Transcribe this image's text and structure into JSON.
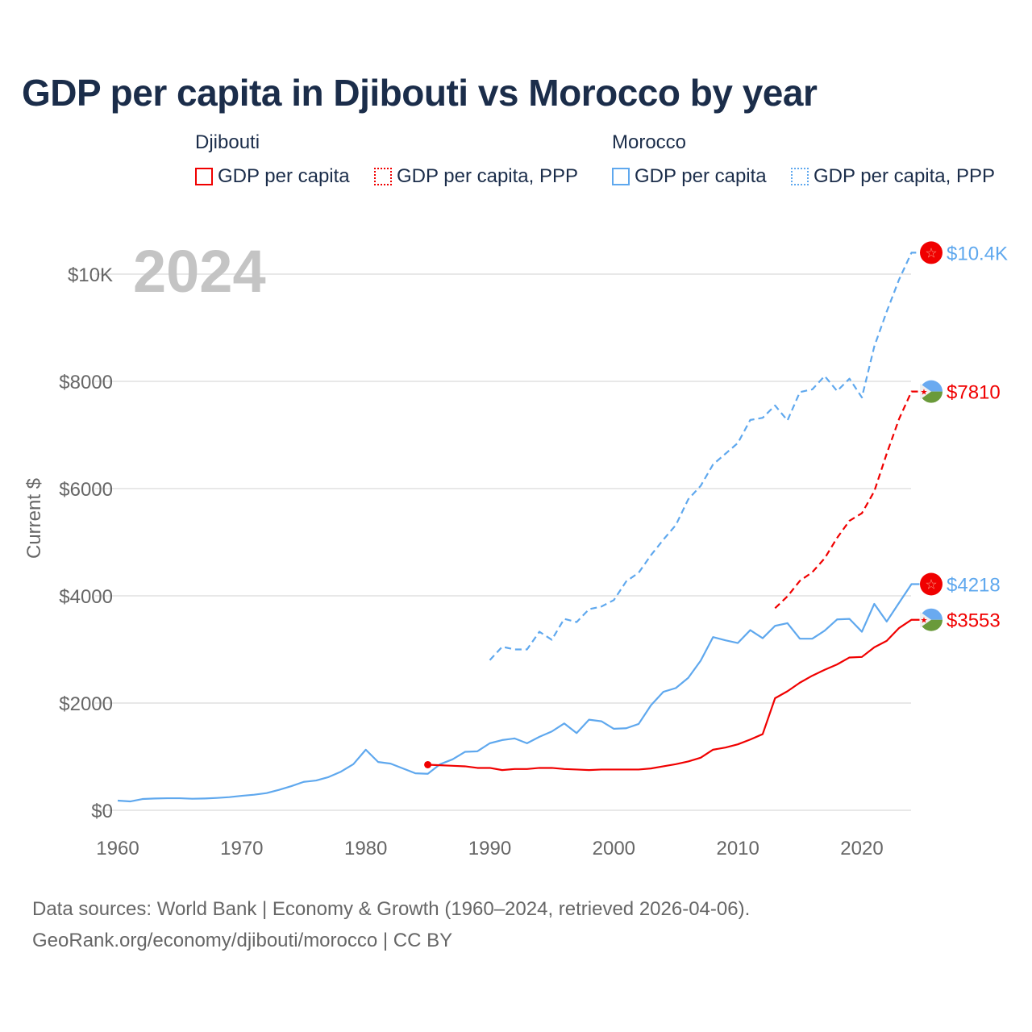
{
  "title": "GDP per capita in Djibouti vs Morocco by year",
  "legend": {
    "groups": [
      {
        "name": "Djibouti",
        "color": "#f00000",
        "items": [
          "GDP per capita",
          "GDP per capita, PPP"
        ]
      },
      {
        "name": "Morocco",
        "color": "#5fa8ee",
        "items": [
          "GDP per capita",
          "GDP per capita, PPP"
        ]
      }
    ]
  },
  "year_watermark": "2024",
  "footer": {
    "line1": "Data sources: World Bank | Economy & Growth (1960–2024, retrieved 2026-04-06).",
    "line2": "GeoRank.org/economy/djibouti/morocco | CC BY"
  },
  "chart_data": {
    "type": "line",
    "title": "GDP per capita in Djibouti vs Morocco by year",
    "ylabel": "Current $",
    "xlabel": "",
    "xlim": [
      1960,
      2024
    ],
    "ylim": [
      0,
      10400
    ],
    "grid": true,
    "x_ticks": [
      1960,
      1970,
      1980,
      1990,
      2000,
      2010,
      2020
    ],
    "x_tick_labels": [
      "1960",
      "1970",
      "1980",
      "1990",
      "2000",
      "2010",
      "2020"
    ],
    "y_ticks": [
      0,
      2000,
      4000,
      6000,
      8000,
      10000
    ],
    "y_tick_labels": [
      "$0",
      "$2000",
      "$4000",
      "$6000",
      "$8000",
      "$10K"
    ],
    "series": [
      {
        "name": "Morocco GDP per capita",
        "color": "#5fa8ee",
        "dash": false,
        "flag": "morocco",
        "end_label": "$4218",
        "start": 1960,
        "values": [
          180,
          165,
          210,
          220,
          225,
          225,
          215,
          220,
          230,
          245,
          270,
          290,
          320,
          380,
          450,
          530,
          555,
          620,
          720,
          860,
          1130,
          900,
          870,
          780,
          690,
          680,
          860,
          950,
          1090,
          1100,
          1250,
          1310,
          1340,
          1250,
          1370,
          1470,
          1620,
          1440,
          1690,
          1660,
          1520,
          1530,
          1610,
          1960,
          2210,
          2280,
          2470,
          2790,
          3230,
          3170,
          3120,
          3360,
          3210,
          3440,
          3490,
          3200,
          3200,
          3350,
          3560,
          3570,
          3330,
          3850,
          3520,
          3870,
          4218
        ]
      },
      {
        "name": "Morocco GDP per capita, PPP",
        "color": "#5fa8ee",
        "dash": true,
        "flag": "morocco",
        "end_label": "$10.4K",
        "start": 1990,
        "values": [
          2800,
          3050,
          3000,
          3000,
          3330,
          3180,
          3570,
          3510,
          3750,
          3800,
          3920,
          4270,
          4430,
          4760,
          5050,
          5320,
          5800,
          6050,
          6450,
          6650,
          6850,
          7280,
          7320,
          7550,
          7270,
          7800,
          7850,
          8100,
          7820,
          8050,
          7700,
          8650,
          9300,
          9900,
          10400
        ]
      },
      {
        "name": "Djibouti GDP per capita",
        "color": "#f00000",
        "dash": false,
        "flag": "djibouti",
        "end_label": "$3553",
        "start": 1985,
        "values": [
          850,
          840,
          830,
          820,
          790,
          790,
          750,
          770,
          770,
          790,
          790,
          770,
          760,
          750,
          760,
          760,
          760,
          760,
          780,
          820,
          860,
          910,
          980,
          1130,
          1170,
          1230,
          1320,
          1420,
          2090,
          2220,
          2380,
          2510,
          2620,
          2720,
          2850,
          2860,
          3040,
          3160,
          3400,
          3553
        ]
      },
      {
        "name": "Djibouti GDP per capita, PPP",
        "color": "#f00000",
        "dash": true,
        "flag": "djibouti",
        "end_label": "$7810",
        "start": 2013,
        "values": [
          3770,
          3990,
          4280,
          4440,
          4700,
          5080,
          5400,
          5540,
          5950,
          6650,
          7300,
          7810
        ]
      }
    ]
  }
}
